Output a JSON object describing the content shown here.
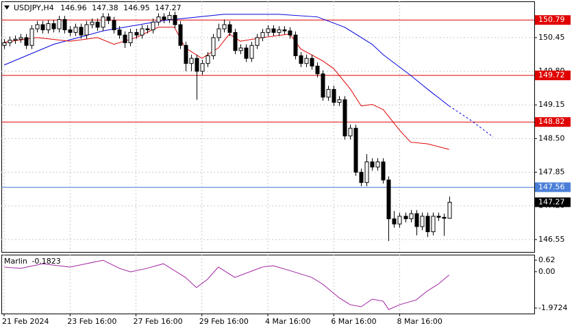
{
  "chart_data": [
    {
      "type": "candlestick",
      "title": "USDJPY,H4",
      "open": [
        150.3,
        150.35,
        150.4,
        150.42,
        150.45,
        150.3,
        150.62,
        150.7,
        150.6,
        150.72,
        150.62,
        150.8,
        150.6,
        150.55,
        150.65,
        150.5,
        150.7,
        150.75,
        150.65,
        150.85,
        150.78,
        150.6,
        150.5,
        150.35,
        150.55,
        150.5,
        150.62,
        150.6,
        150.75,
        150.85,
        150.8,
        150.88,
        150.7,
        150.3,
        149.95,
        150.05,
        149.8,
        149.95,
        150.1,
        150.45,
        150.62,
        150.7,
        150.55,
        150.2,
        150.25,
        150.05,
        150.3,
        150.45,
        150.55,
        150.62,
        150.55,
        150.6,
        150.58,
        150.5,
        150.1,
        149.95,
        150.05,
        149.9,
        149.75,
        149.3,
        149.45,
        149.2,
        149.25,
        148.55,
        148.7,
        147.85,
        147.65,
        148.05,
        147.95,
        148.05,
        147.7,
        146.95,
        146.85,
        147.0,
        146.95,
        147.05,
        146.8,
        147.0,
        146.7,
        147.0,
        146.98,
        146.96
      ],
      "high": [
        150.42,
        150.47,
        150.49,
        150.52,
        150.52,
        150.69,
        150.77,
        150.77,
        150.79,
        150.79,
        150.87,
        150.87,
        150.67,
        150.72,
        150.72,
        150.77,
        150.82,
        150.82,
        150.92,
        150.92,
        150.85,
        150.67,
        150.57,
        150.62,
        150.62,
        150.69,
        150.69,
        150.82,
        150.92,
        150.92,
        150.95,
        150.95,
        150.77,
        150.37,
        150.12,
        150.12,
        150.02,
        150.17,
        150.52,
        150.72,
        150.8,
        150.77,
        150.62,
        150.32,
        150.32,
        150.37,
        150.52,
        150.62,
        150.69,
        150.69,
        150.67,
        150.67,
        150.65,
        150.57,
        150.17,
        150.12,
        150.12,
        149.97,
        149.82,
        149.52,
        149.52,
        149.32,
        149.32,
        148.77,
        148.77,
        147.92,
        148.2,
        148.12,
        148.12,
        148.12,
        147.77,
        147.1,
        147.07,
        147.07,
        147.12,
        147.12,
        147.07,
        147.07,
        147.07,
        147.07,
        147.05,
        147.38
      ],
      "low": [
        150.23,
        150.28,
        150.33,
        150.35,
        150.23,
        150.23,
        150.55,
        150.53,
        150.53,
        150.55,
        150.55,
        150.53,
        150.48,
        150.48,
        150.43,
        150.43,
        150.63,
        150.58,
        150.58,
        150.71,
        150.53,
        150.43,
        150.25,
        150.28,
        150.43,
        150.43,
        150.53,
        150.53,
        150.68,
        150.73,
        150.73,
        150.63,
        150.23,
        149.8,
        149.8,
        149.25,
        149.73,
        149.88,
        150.03,
        150.38,
        150.55,
        150.48,
        150.13,
        150.13,
        149.98,
        149.98,
        150.23,
        150.38,
        150.48,
        150.48,
        150.48,
        150.51,
        150.43,
        150.03,
        149.88,
        149.88,
        149.83,
        149.68,
        149.23,
        149.23,
        149.13,
        149.13,
        148.48,
        148.48,
        147.78,
        147.58,
        147.58,
        147.88,
        147.88,
        147.63,
        146.52,
        146.78,
        146.78,
        146.88,
        146.88,
        146.63,
        146.73,
        146.6,
        146.63,
        146.91,
        146.62,
        146.95
      ],
      "close": [
        150.35,
        150.4,
        150.42,
        150.45,
        150.3,
        150.62,
        150.7,
        150.6,
        150.72,
        150.62,
        150.8,
        150.6,
        150.55,
        150.65,
        150.5,
        150.7,
        150.75,
        150.65,
        150.85,
        150.78,
        150.6,
        150.5,
        150.35,
        150.55,
        150.5,
        150.62,
        150.6,
        150.75,
        150.85,
        150.8,
        150.88,
        150.7,
        150.3,
        149.95,
        150.05,
        149.8,
        149.95,
        150.1,
        150.45,
        150.62,
        150.7,
        150.55,
        150.2,
        150.25,
        150.05,
        150.3,
        150.45,
        150.55,
        150.62,
        150.55,
        150.6,
        150.58,
        150.5,
        150.1,
        149.95,
        150.05,
        149.9,
        149.75,
        149.3,
        149.45,
        149.2,
        149.25,
        148.55,
        148.7,
        147.85,
        147.65,
        148.05,
        147.95,
        148.05,
        147.7,
        146.95,
        146.85,
        147.0,
        146.95,
        147.05,
        146.8,
        147.0,
        146.7,
        147.0,
        146.98,
        146.96,
        147.27
      ],
      "up_color": "#ffffff",
      "down_color": "#000000",
      "lines": [
        {
          "color": "#0000dd",
          "x": [
            0,
            9,
            18,
            29,
            40,
            50,
            57,
            62,
            67,
            69,
            74,
            77,
            81
          ],
          "values": [
            149.92,
            150.32,
            150.58,
            150.78,
            150.9,
            150.9,
            150.85,
            150.65,
            150.32,
            150.12,
            149.72,
            149.46,
            149.13
          ]
        },
        {
          "color": "#0000dd",
          "dashed": true,
          "x": [
            81,
            85,
            89
          ],
          "values": [
            149.13,
            148.85,
            148.53
          ]
        },
        {
          "color": "#e00000",
          "x": [
            0,
            6,
            12,
            17,
            20,
            24,
            28,
            31,
            33,
            36,
            39,
            41,
            43,
            47,
            52,
            54,
            58,
            60,
            63,
            65,
            67,
            69,
            72,
            74,
            77,
            81
          ],
          "values": [
            150.36,
            150.45,
            150.38,
            150.45,
            150.32,
            150.45,
            150.65,
            150.65,
            150.25,
            150.05,
            150.25,
            150.52,
            150.38,
            150.45,
            150.52,
            150.23,
            150.0,
            149.85,
            149.46,
            149.13,
            149.16,
            149.06,
            148.66,
            148.43,
            148.4,
            148.29
          ]
        }
      ],
      "levels": [
        {
          "value": 150.79,
          "color": "#e00000"
        },
        {
          "value": 149.72,
          "color": "#e00000"
        },
        {
          "value": 148.82,
          "color": "#e00000"
        },
        {
          "value": 147.56,
          "color": "#4a7fd8"
        }
      ],
      "xlim": [
        -0.5,
        96.5
      ],
      "ylim": [
        146.31,
        151.15
      ],
      "yticks": [
        150.45,
        {
          "value": 149.8,
          "label": "149.80"
        },
        149.15,
        {
          "value": 148.5,
          "label": "148.50"
        },
        147.85,
        {
          "value": 147.2,
          "label": "147.20"
        },
        146.55
      ],
      "xticks": [
        {
          "value": 0,
          "label": "21 Feb 2024"
        },
        {
          "value": 12,
          "label": "23 Feb 16:00"
        },
        {
          "value": 24,
          "label": "27 Feb 16:00"
        },
        {
          "value": 36,
          "label": "29 Feb 16:00"
        },
        {
          "value": 48,
          "label": "4 Mar 16:00"
        },
        {
          "value": 60,
          "label": "6 Mar 16:00"
        },
        {
          "value": 72,
          "label": "8 Mar 16:00"
        }
      ],
      "grid": true
    },
    {
      "type": "line",
      "title": "Marlin",
      "series": [
        {
          "color": "#a020a0",
          "x": [
            0,
            3,
            7,
            12,
            18,
            21,
            23,
            26,
            29,
            33,
            35,
            37,
            39,
            42,
            47,
            49,
            52,
            56,
            58,
            61,
            63,
            65,
            67,
            69,
            70,
            72,
            75,
            77,
            79,
            81
          ],
          "values": [
            0.25,
            0.18,
            0.43,
            0.25,
            0.62,
            0.18,
            -0.01,
            0.18,
            0.43,
            -0.31,
            -0.86,
            -0.42,
            0.25,
            -0.31,
            0.25,
            0.32,
            0.06,
            -0.31,
            -0.68,
            -1.42,
            -1.79,
            -1.9,
            -1.49,
            -1.6,
            -2.05,
            -1.79,
            -1.53,
            -1.05,
            -0.68,
            -0.1823
          ]
        }
      ],
      "xlim": [
        -0.5,
        96.5
      ],
      "ylim": [
        -2.27,
        0.92
      ],
      "yticks": [
        0.62,
        {
          "value": 0,
          "label": "0.00"
        },
        -1.9724
      ]
    }
  ]
}
